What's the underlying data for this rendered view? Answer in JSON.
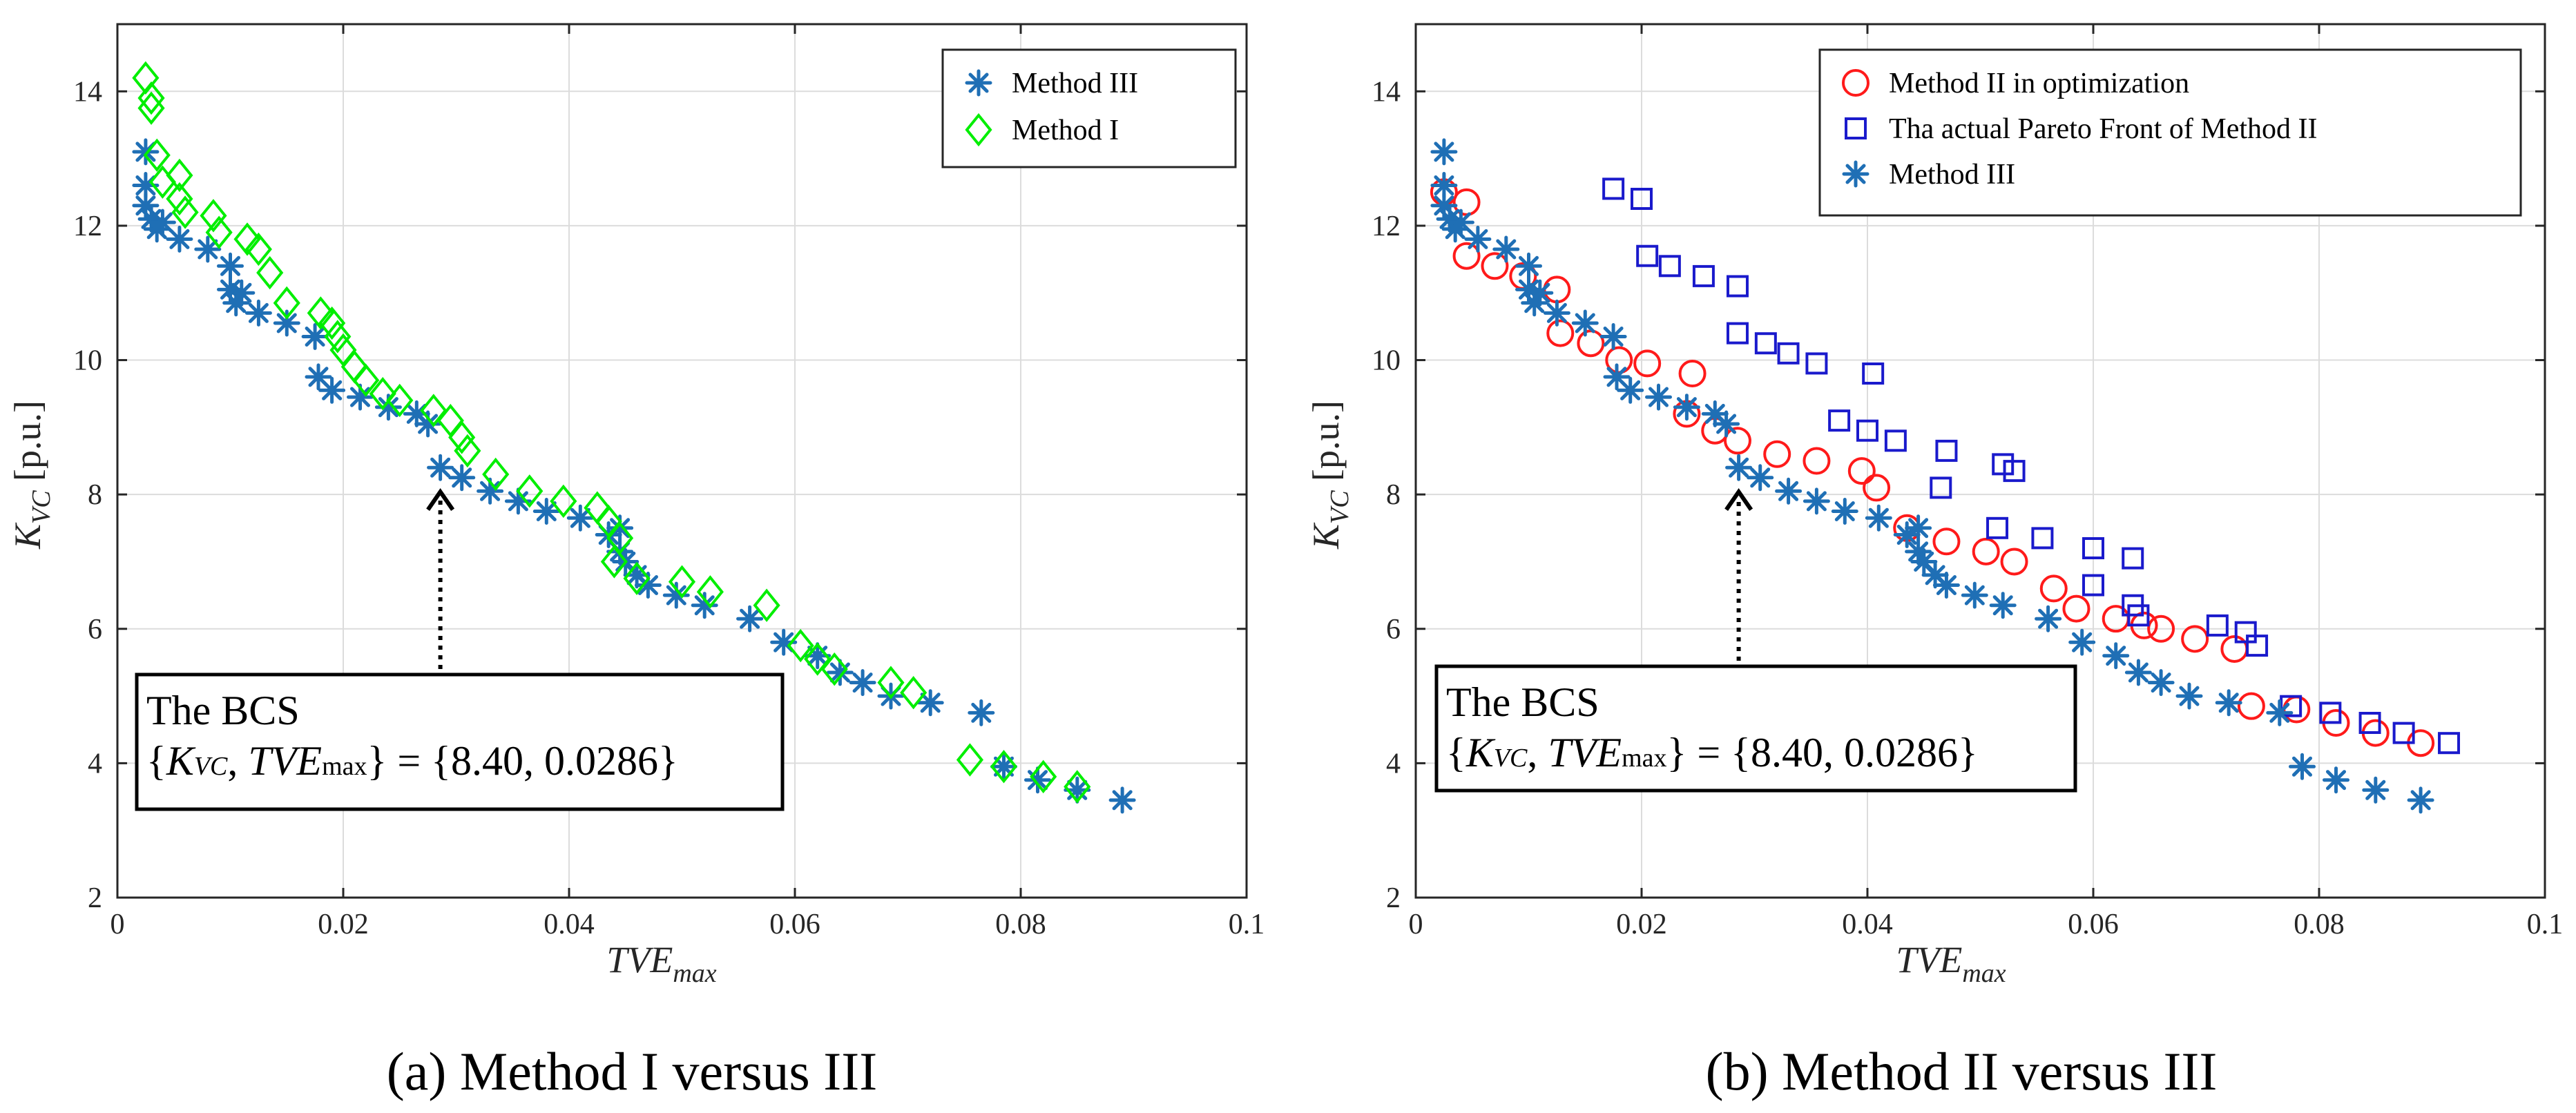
{
  "figure": {
    "colors": {
      "method1": "#00ee00",
      "method2_opt": "#ff1a1a",
      "method2_front": "#1a1acc",
      "method3": "#1f6fb5",
      "grid": "#dcdcdc",
      "axis": "#262626"
    }
  },
  "chart_data": [
    {
      "type": "scatter",
      "caption": "(a) Method I versus III",
      "xlabel": "TVE",
      "xlabel_sub": "max",
      "ylabel": "K",
      "ylabel_sub": "VC",
      "ylabel_unit": "[p.u.]",
      "xlim": [
        0,
        0.1
      ],
      "ylim": [
        2,
        15
      ],
      "x_ticks": [
        0,
        0.02,
        0.04,
        0.06,
        0.08,
        0.1
      ],
      "x_tick_labels": [
        "0",
        "0.02",
        "0.04",
        "0.06",
        "0.08",
        "0.1"
      ],
      "y_ticks": [
        2,
        4,
        6,
        8,
        10,
        12,
        14
      ],
      "y_tick_labels": [
        "2",
        "4",
        "6",
        "8",
        "10",
        "12",
        "14"
      ],
      "grid": true,
      "legend_position": "top-right",
      "annotation": {
        "title": "The BCS",
        "open_brace": "{",
        "k_symbol": "K",
        "k_sub": "VC",
        "separator": ", ",
        "tve_symbol": "TVE",
        "tve_sub": "max",
        "close_and_value": "} = {8.40, 0.0286}",
        "point": [
          0.0286,
          8.4
        ]
      },
      "series": [
        {
          "name": "Method III",
          "marker": "asterisk",
          "color": "#1f6fb5",
          "points": [
            [
              0.0025,
              13.1
            ],
            [
              0.0025,
              12.6
            ],
            [
              0.0025,
              12.3
            ],
            [
              0.003,
              12.1
            ],
            [
              0.0035,
              11.95
            ],
            [
              0.004,
              12.05
            ],
            [
              0.0055,
              11.8
            ],
            [
              0.008,
              11.65
            ],
            [
              0.01,
              11.4
            ],
            [
              0.01,
              11.05
            ],
            [
              0.0105,
              10.85
            ],
            [
              0.011,
              11.0
            ],
            [
              0.0125,
              10.7
            ],
            [
              0.015,
              10.55
            ],
            [
              0.0175,
              10.35
            ],
            [
              0.0178,
              9.75
            ],
            [
              0.019,
              9.55
            ],
            [
              0.0215,
              9.45
            ],
            [
              0.024,
              9.3
            ],
            [
              0.0265,
              9.2
            ],
            [
              0.0275,
              9.05
            ],
            [
              0.0286,
              8.4
            ],
            [
              0.0305,
              8.25
            ],
            [
              0.033,
              8.05
            ],
            [
              0.0355,
              7.9
            ],
            [
              0.038,
              7.75
            ],
            [
              0.041,
              7.65
            ],
            [
              0.0435,
              7.4
            ],
            [
              0.0445,
              7.5
            ],
            [
              0.0445,
              7.15
            ],
            [
              0.045,
              7.0
            ],
            [
              0.046,
              6.8
            ],
            [
              0.047,
              6.65
            ],
            [
              0.0495,
              6.5
            ],
            [
              0.052,
              6.35
            ],
            [
              0.056,
              6.15
            ],
            [
              0.059,
              5.8
            ],
            [
              0.062,
              5.6
            ],
            [
              0.064,
              5.35
            ],
            [
              0.066,
              5.2
            ],
            [
              0.0685,
              5.0
            ],
            [
              0.072,
              4.9
            ],
            [
              0.0765,
              4.75
            ],
            [
              0.0785,
              3.95
            ],
            [
              0.0815,
              3.75
            ],
            [
              0.085,
              3.6
            ],
            [
              0.089,
              3.45
            ]
          ]
        },
        {
          "name": "Method I",
          "marker": "diamond",
          "color": "#00ee00",
          "points": [
            [
              0.0025,
              14.2
            ],
            [
              0.003,
              13.9
            ],
            [
              0.003,
              13.75
            ],
            [
              0.0035,
              13.05
            ],
            [
              0.004,
              12.65
            ],
            [
              0.0055,
              12.75
            ],
            [
              0.0055,
              12.4
            ],
            [
              0.006,
              12.2
            ],
            [
              0.0085,
              12.15
            ],
            [
              0.009,
              11.9
            ],
            [
              0.0115,
              11.8
            ],
            [
              0.0125,
              11.65
            ],
            [
              0.0135,
              11.3
            ],
            [
              0.015,
              10.85
            ],
            [
              0.018,
              10.7
            ],
            [
              0.019,
              10.55
            ],
            [
              0.0195,
              10.35
            ],
            [
              0.02,
              10.15
            ],
            [
              0.021,
              9.9
            ],
            [
              0.022,
              9.7
            ],
            [
              0.0235,
              9.5
            ],
            [
              0.025,
              9.4
            ],
            [
              0.028,
              9.25
            ],
            [
              0.0295,
              9.1
            ],
            [
              0.0305,
              8.85
            ],
            [
              0.031,
              8.65
            ],
            [
              0.0335,
              8.3
            ],
            [
              0.0365,
              8.05
            ],
            [
              0.0395,
              7.9
            ],
            [
              0.0425,
              7.8
            ],
            [
              0.0435,
              7.6
            ],
            [
              0.0445,
              7.35
            ],
            [
              0.044,
              7.0
            ],
            [
              0.046,
              6.75
            ],
            [
              0.05,
              6.7
            ],
            [
              0.0525,
              6.55
            ],
            [
              0.0575,
              6.35
            ],
            [
              0.0605,
              5.75
            ],
            [
              0.062,
              5.55
            ],
            [
              0.0635,
              5.4
            ],
            [
              0.0685,
              5.2
            ],
            [
              0.0705,
              5.05
            ],
            [
              0.0755,
              4.05
            ],
            [
              0.0785,
              3.95
            ],
            [
              0.082,
              3.8
            ],
            [
              0.085,
              3.65
            ]
          ]
        }
      ]
    },
    {
      "type": "scatter",
      "caption": "(b) Method II versus III",
      "xlabel": "TVE",
      "xlabel_sub": "max",
      "ylabel": "K",
      "ylabel_sub": "VC",
      "ylabel_unit": "[p.u.]",
      "xlim": [
        0,
        0.1
      ],
      "ylim": [
        2,
        15
      ],
      "x_ticks": [
        0,
        0.02,
        0.04,
        0.06,
        0.08,
        0.1
      ],
      "x_tick_labels": [
        "0",
        "0.02",
        "0.04",
        "0.06",
        "0.08",
        "0.1"
      ],
      "y_ticks": [
        2,
        4,
        6,
        8,
        10,
        12,
        14
      ],
      "y_tick_labels": [
        "2",
        "4",
        "6",
        "8",
        "10",
        "12",
        "14"
      ],
      "grid": true,
      "legend_position": "top-right",
      "annotation": {
        "title": "The BCS",
        "open_brace": "{",
        "k_symbol": "K",
        "k_sub": "VC",
        "separator": ", ",
        "tve_symbol": "TVE",
        "tve_sub": "max",
        "close_and_value": "} = {8.40, 0.0286}",
        "point": [
          0.0286,
          8.4
        ]
      },
      "series": [
        {
          "name": "Method II in optimization",
          "marker": "circle",
          "color": "#ff1a1a",
          "points": [
            [
              0.0025,
              12.5
            ],
            [
              0.0045,
              12.35
            ],
            [
              0.0045,
              11.55
            ],
            [
              0.007,
              11.4
            ],
            [
              0.0095,
              11.25
            ],
            [
              0.0125,
              11.05
            ],
            [
              0.0128,
              10.4
            ],
            [
              0.0155,
              10.25
            ],
            [
              0.018,
              10.0
            ],
            [
              0.0205,
              9.95
            ],
            [
              0.0245,
              9.8
            ],
            [
              0.024,
              9.2
            ],
            [
              0.0265,
              8.95
            ],
            [
              0.0285,
              8.8
            ],
            [
              0.032,
              8.6
            ],
            [
              0.0355,
              8.5
            ],
            [
              0.0395,
              8.35
            ],
            [
              0.0408,
              8.1
            ],
            [
              0.0435,
              7.5
            ],
            [
              0.047,
              7.3
            ],
            [
              0.0505,
              7.15
            ],
            [
              0.053,
              7.0
            ],
            [
              0.0565,
              6.6
            ],
            [
              0.0585,
              6.3
            ],
            [
              0.062,
              6.15
            ],
            [
              0.0645,
              6.05
            ],
            [
              0.066,
              6.0
            ],
            [
              0.069,
              5.85
            ],
            [
              0.0725,
              5.7
            ],
            [
              0.074,
              4.85
            ],
            [
              0.078,
              4.8
            ],
            [
              0.0815,
              4.6
            ],
            [
              0.085,
              4.45
            ],
            [
              0.089,
              4.3
            ]
          ]
        },
        {
          "name": "Tha actual Pareto Front of Method II",
          "marker": "square",
          "color": "#1a1acc",
          "points": [
            [
              0.0175,
              12.55
            ],
            [
              0.02,
              12.4
            ],
            [
              0.0205,
              11.55
            ],
            [
              0.0225,
              11.4
            ],
            [
              0.0255,
              11.25
            ],
            [
              0.0285,
              11.1
            ],
            [
              0.0285,
              10.4
            ],
            [
              0.031,
              10.25
            ],
            [
              0.033,
              10.1
            ],
            [
              0.0355,
              9.95
            ],
            [
              0.0405,
              9.8
            ],
            [
              0.0375,
              9.1
            ],
            [
              0.04,
              8.95
            ],
            [
              0.0425,
              8.8
            ],
            [
              0.047,
              8.65
            ],
            [
              0.0465,
              8.1
            ],
            [
              0.052,
              8.45
            ],
            [
              0.053,
              8.35
            ],
            [
              0.0515,
              7.5
            ],
            [
              0.0555,
              7.35
            ],
            [
              0.06,
              7.2
            ],
            [
              0.0635,
              7.05
            ],
            [
              0.06,
              6.65
            ],
            [
              0.0635,
              6.35
            ],
            [
              0.064,
              6.2
            ],
            [
              0.071,
              6.05
            ],
            [
              0.0735,
              5.95
            ],
            [
              0.0745,
              5.75
            ],
            [
              0.0775,
              4.85
            ],
            [
              0.081,
              4.75
            ],
            [
              0.0845,
              4.6
            ],
            [
              0.0875,
              4.45
            ],
            [
              0.0915,
              4.3
            ]
          ]
        },
        {
          "name": "Method III",
          "marker": "asterisk",
          "color": "#1f6fb5",
          "points": [
            [
              0.0025,
              13.1
            ],
            [
              0.0025,
              12.6
            ],
            [
              0.0025,
              12.3
            ],
            [
              0.003,
              12.1
            ],
            [
              0.0035,
              11.95
            ],
            [
              0.004,
              12.05
            ],
            [
              0.0055,
              11.8
            ],
            [
              0.008,
              11.65
            ],
            [
              0.01,
              11.4
            ],
            [
              0.01,
              11.05
            ],
            [
              0.0105,
              10.85
            ],
            [
              0.011,
              11.0
            ],
            [
              0.0125,
              10.7
            ],
            [
              0.015,
              10.55
            ],
            [
              0.0175,
              10.35
            ],
            [
              0.0178,
              9.75
            ],
            [
              0.019,
              9.55
            ],
            [
              0.0215,
              9.45
            ],
            [
              0.024,
              9.3
            ],
            [
              0.0265,
              9.2
            ],
            [
              0.0275,
              9.05
            ],
            [
              0.0286,
              8.4
            ],
            [
              0.0305,
              8.25
            ],
            [
              0.033,
              8.05
            ],
            [
              0.0355,
              7.9
            ],
            [
              0.038,
              7.75
            ],
            [
              0.041,
              7.65
            ],
            [
              0.0435,
              7.4
            ],
            [
              0.0445,
              7.5
            ],
            [
              0.0445,
              7.15
            ],
            [
              0.045,
              7.0
            ],
            [
              0.046,
              6.8
            ],
            [
              0.047,
              6.65
            ],
            [
              0.0495,
              6.5
            ],
            [
              0.052,
              6.35
            ],
            [
              0.056,
              6.15
            ],
            [
              0.059,
              5.8
            ],
            [
              0.062,
              5.6
            ],
            [
              0.064,
              5.35
            ],
            [
              0.066,
              5.2
            ],
            [
              0.0685,
              5.0
            ],
            [
              0.072,
              4.9
            ],
            [
              0.0765,
              4.75
            ],
            [
              0.0785,
              3.95
            ],
            [
              0.0815,
              3.75
            ],
            [
              0.085,
              3.6
            ],
            [
              0.089,
              3.45
            ]
          ]
        }
      ]
    }
  ]
}
